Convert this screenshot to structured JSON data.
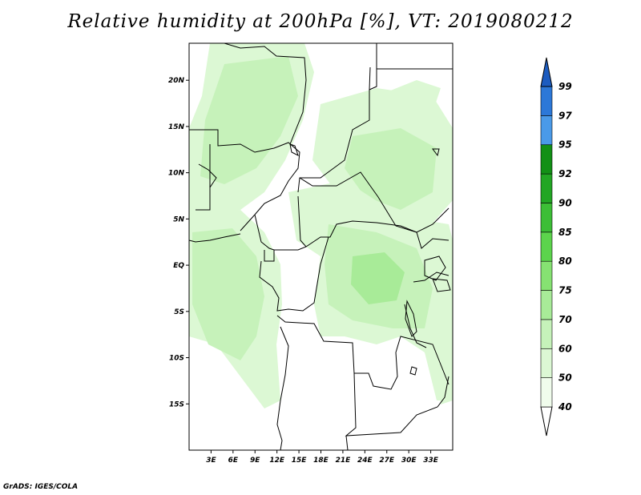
{
  "title": "Relative humidity at 200hPa [%], VT: 2019080212",
  "footer": "GrADS: IGES/COLA",
  "map": {
    "lon_range": [
      0,
      36
    ],
    "lat_range": [
      -20,
      24
    ],
    "lat_ticks": [
      {
        "value": 20,
        "label": "20N"
      },
      {
        "value": 15,
        "label": "15N"
      },
      {
        "value": 10,
        "label": "10N"
      },
      {
        "value": 5,
        "label": "5N"
      },
      {
        "value": 0,
        "label": "EQ"
      },
      {
        "value": -5,
        "label": "5S"
      },
      {
        "value": -10,
        "label": "10S"
      },
      {
        "value": -15,
        "label": "15S"
      }
    ],
    "lon_ticks": [
      {
        "value": 3,
        "label": "3E"
      },
      {
        "value": 6,
        "label": "6E"
      },
      {
        "value": 9,
        "label": "9E"
      },
      {
        "value": 12,
        "label": "12E"
      },
      {
        "value": 15,
        "label": "15E"
      },
      {
        "value": 18,
        "label": "18E"
      },
      {
        "value": 21,
        "label": "21E"
      },
      {
        "value": 24,
        "label": "24E"
      },
      {
        "value": 27,
        "label": "27E"
      },
      {
        "value": 30,
        "label": "30E"
      },
      {
        "value": 33,
        "label": "33E"
      }
    ]
  },
  "colorbar": {
    "levels": [
      {
        "label": "40",
        "color": "#f0fcec"
      },
      {
        "label": "50",
        "color": "#dcf8d4"
      },
      {
        "label": "60",
        "color": "#c6f2ba"
      },
      {
        "label": "70",
        "color": "#a8eb98"
      },
      {
        "label": "75",
        "color": "#86e272"
      },
      {
        "label": "80",
        "color": "#5cd44c"
      },
      {
        "label": "85",
        "color": "#3cbe36"
      },
      {
        "label": "90",
        "color": "#22a624"
      },
      {
        "label": "92",
        "color": "#129016"
      },
      {
        "label": "95",
        "color": "#4a9ae8"
      },
      {
        "label": "97",
        "color": "#2c78d8"
      },
      {
        "label": "99",
        "color": "#1c5cc0"
      }
    ]
  }
}
